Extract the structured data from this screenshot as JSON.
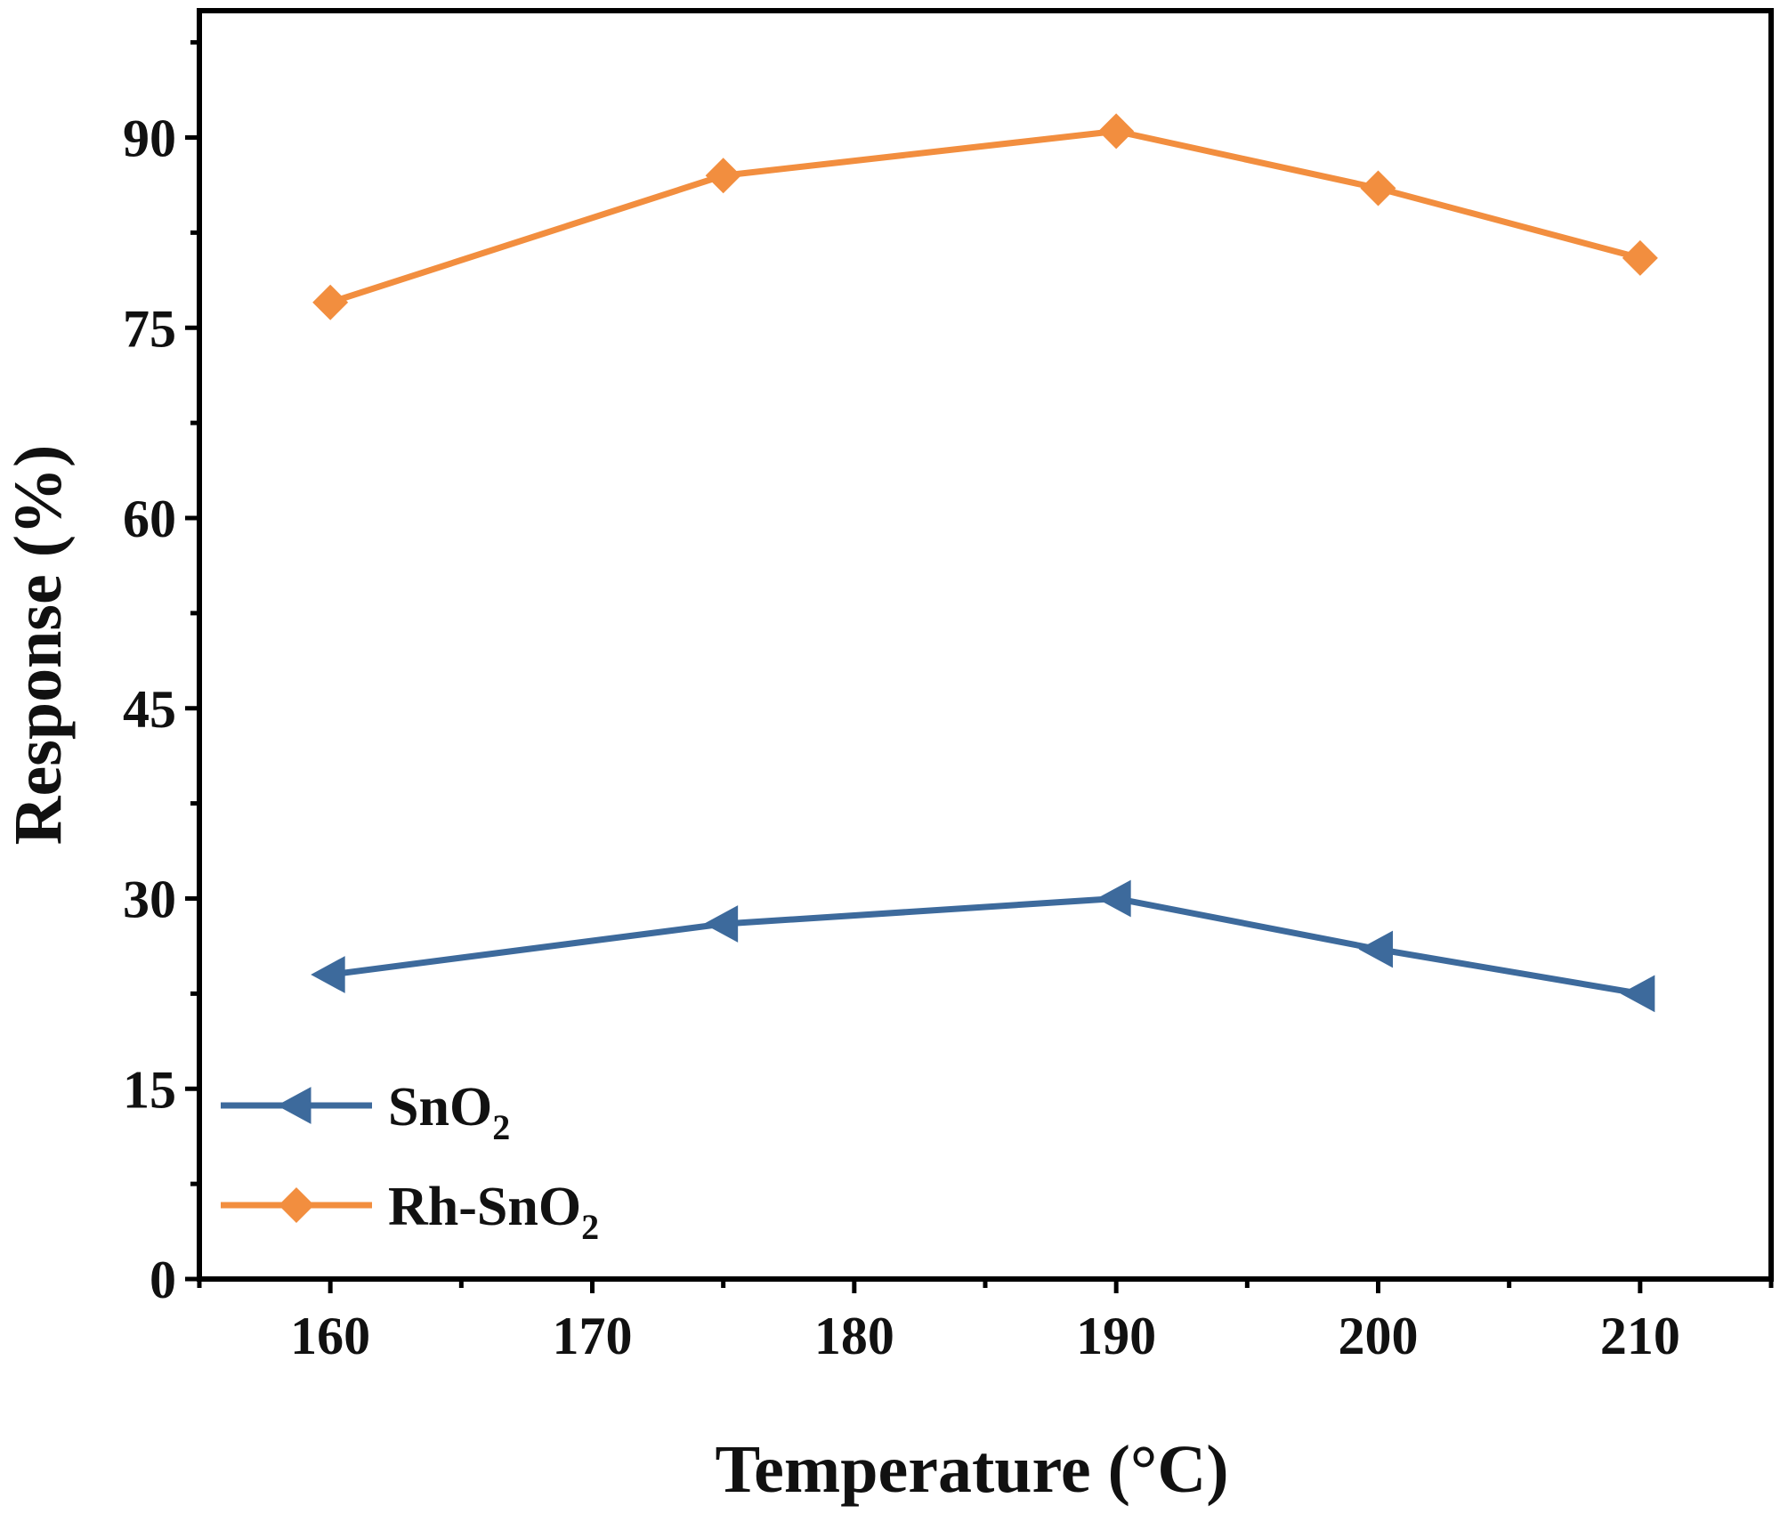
{
  "chart_data": {
    "type": "line",
    "title": "",
    "xlabel": "Temperature (°C)",
    "ylabel": "Response (%)",
    "xlim": [
      155,
      215
    ],
    "ylim": [
      0,
      100
    ],
    "xticks": [
      160,
      170,
      180,
      190,
      200,
      210
    ],
    "yticks": [
      0,
      15,
      30,
      45,
      60,
      75,
      90
    ],
    "x": [
      160,
      175,
      190,
      200,
      210
    ],
    "series": [
      {
        "name": "SnO2",
        "label_main": "SnO",
        "label_sub": "2",
        "values": [
          24,
          28,
          30,
          26,
          22.5
        ],
        "color": "#3d6a9c",
        "marker": "left-triangle"
      },
      {
        "name": "Rh-SnO2",
        "label_main": "Rh-SnO",
        "label_sub": "2",
        "values": [
          77,
          87,
          90.5,
          86,
          80.5
        ],
        "color": "#f28e3f",
        "marker": "diamond"
      }
    ],
    "legend_position": "bottom-left",
    "grid": false
  }
}
